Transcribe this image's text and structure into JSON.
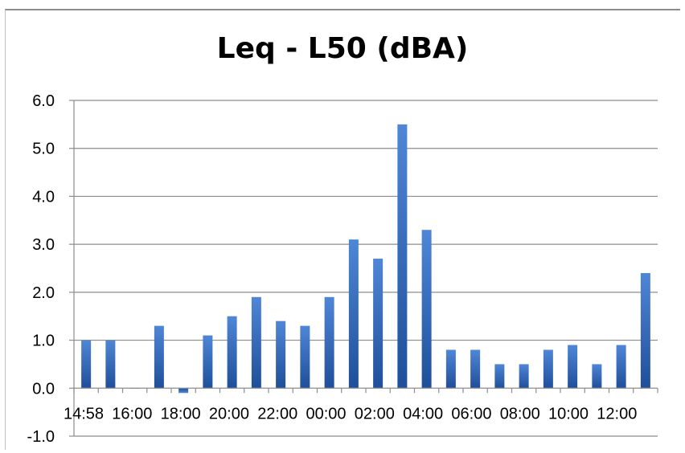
{
  "chart_data": {
    "type": "bar",
    "title": "Leq - L50 (dBA)",
    "xlabel": "",
    "ylabel": "",
    "ylim": [
      -1.0,
      6.0
    ],
    "yticks": [
      "-1.0",
      "0.0",
      "1.0",
      "2.0",
      "3.0",
      "4.0",
      "5.0",
      "6.0"
    ],
    "xtick_labels": [
      "14:58",
      "16:00",
      "18:00",
      "20:00",
      "22:00",
      "00:00",
      "02:00",
      "04:00",
      "06:00",
      "08:00",
      "10:00",
      "12:00"
    ],
    "values": [
      1.0,
      1.0,
      0.0,
      1.3,
      -0.1,
      1.1,
      1.5,
      1.9,
      1.4,
      1.3,
      1.9,
      3.1,
      2.7,
      5.5,
      3.3,
      0.8,
      0.8,
      0.5,
      0.5,
      0.8,
      0.9,
      0.5,
      0.9,
      2.4
    ],
    "grid": true,
    "legend": "none",
    "bar_color": "#3d73c6"
  }
}
